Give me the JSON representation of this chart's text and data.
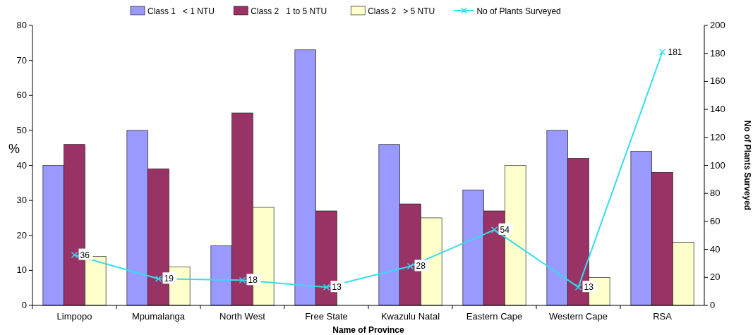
{
  "chart_data": {
    "type": "bar",
    "xlabel": "Name of Province",
    "ylabel": "%",
    "y2label": "No of Plants Surveyed",
    "categories": [
      "Limpopo",
      "Mpumalanga",
      "North West",
      "Free State",
      "Kwazulu Natal",
      "Eastern Cape",
      "Western Cape",
      "RSA"
    ],
    "series": [
      {
        "name": "Class 1   < 1 NTU",
        "color": "#9999ff",
        "values": [
          40,
          50,
          17,
          73,
          46,
          33,
          50,
          44
        ]
      },
      {
        "name": "Class 2   1 to 5 NTU",
        "color": "#993366",
        "values": [
          46,
          39,
          55,
          27,
          29,
          27,
          42,
          38
        ]
      },
      {
        "name": "Class 2   > 5 NTU",
        "color": "#ffffcc",
        "values": [
          14,
          11,
          28,
          0,
          25,
          40,
          8,
          18
        ]
      },
      {
        "name": "No of Plants Surveyed",
        "type": "line",
        "axis": "y2",
        "color": "#33ddee",
        "marker": "cross",
        "values": [
          36,
          19,
          18,
          13,
          28,
          54,
          13,
          181
        ],
        "value_labels": [
          "36",
          "19",
          "18",
          "13",
          "28",
          "54",
          "13",
          "181"
        ]
      }
    ],
    "ylim": [
      0,
      80
    ],
    "yticks": [
      0,
      10,
      20,
      30,
      40,
      50,
      60,
      70,
      80
    ],
    "y2lim": [
      0,
      200
    ],
    "y2ticks": [
      0,
      20,
      40,
      60,
      80,
      100,
      120,
      140,
      160,
      180,
      200
    ],
    "grid": false,
    "legend": "top"
  }
}
